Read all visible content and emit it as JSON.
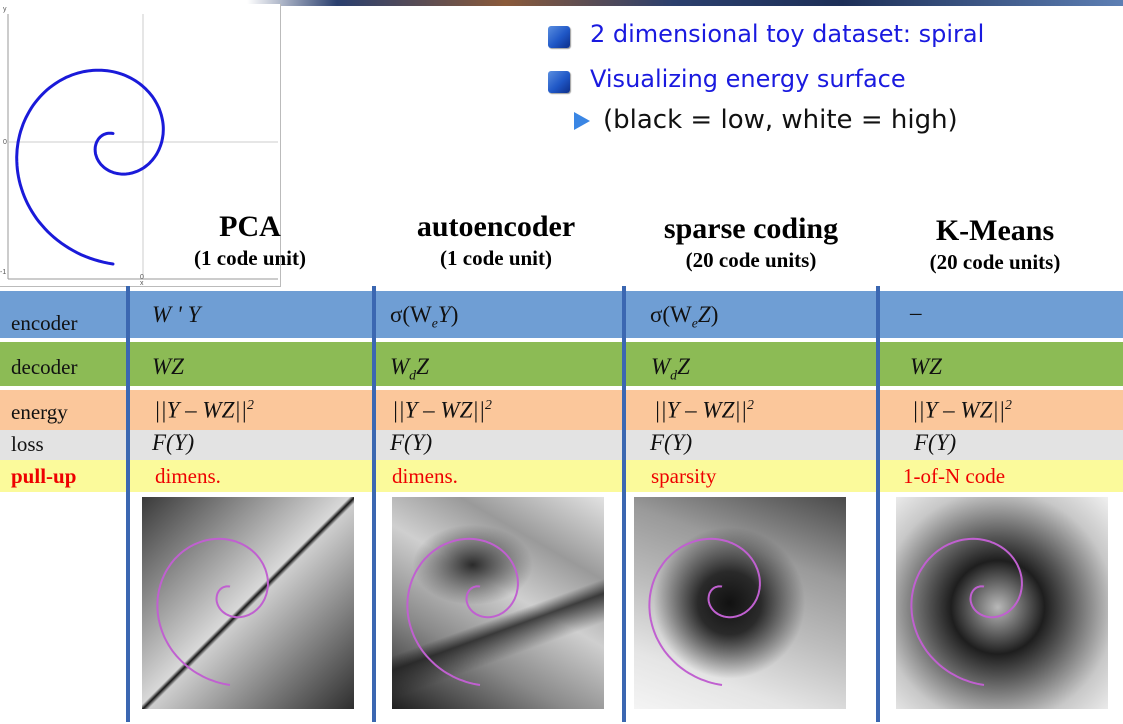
{
  "spiral_plot": {
    "y_ticks": [
      "y",
      "0",
      "-1"
    ],
    "x_ticks": [
      "0",
      "x"
    ]
  },
  "bullets": [
    "2 dimensional toy dataset: spiral",
    "Visualizing energy surface"
  ],
  "sub_bullet": "(black = low, white = high)",
  "columns": [
    {
      "title": "PCA",
      "subtitle": "(1 code unit)"
    },
    {
      "title": "autoencoder",
      "subtitle": "(1 code unit)"
    },
    {
      "title": "sparse coding",
      "subtitle": "(20 code units)"
    },
    {
      "title": "K-Means",
      "subtitle": "(20  code units)"
    }
  ],
  "rows": {
    "encoder": {
      "label": "encoder",
      "values": [
        "W ' Y",
        "σ(W",
        "σ(W",
        "–"
      ]
    },
    "decoder": {
      "label": "decoder",
      "values": [
        "WZ",
        "W",
        "W",
        "WZ"
      ]
    },
    "energy": {
      "label": "energy",
      "value": "||Y – WZ||"
    },
    "loss": {
      "label": "loss",
      "value": "F(Y)"
    },
    "pullup": {
      "label": "pull-up",
      "values": [
        "dimens.",
        "dimens.",
        "sparsity",
        "1-of-N code"
      ]
    }
  },
  "colors": {
    "encoder_row": "#6f9ed4",
    "decoder_row": "#8cbb55",
    "energy_row": "#fbc79b",
    "loss_row": "#e3e3e3",
    "pullup_row": "#fbfa9b",
    "separator": "#3b67b1",
    "spiral_data": "#1a1ad9",
    "spiral_overlay": "#c060d0",
    "pullup_text": "#e00000"
  }
}
